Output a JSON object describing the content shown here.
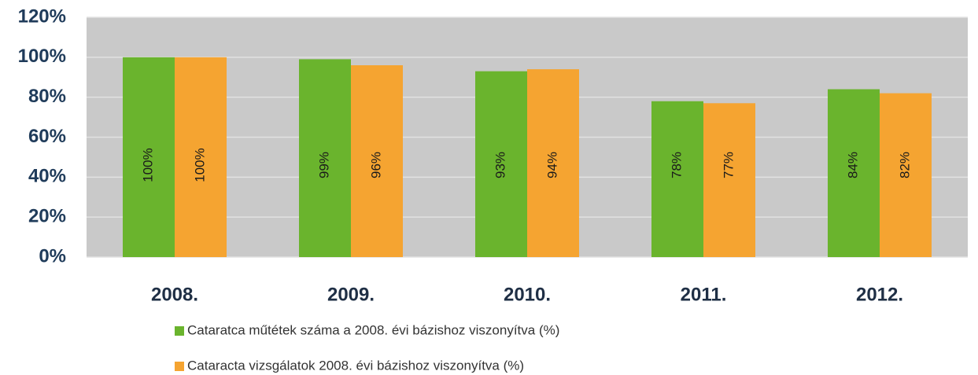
{
  "chart_data": {
    "type": "bar",
    "categories": [
      "2008.",
      "2009.",
      "2010.",
      "2011.",
      "2012."
    ],
    "series": [
      {
        "name": "Cataratca műtétek száma a 2008. évi bázishoz viszonyítva (%)",
        "color": "#6ab42d",
        "values": [
          100,
          99,
          93,
          78,
          84
        ],
        "value_labels": [
          "100%",
          "99%",
          "93%",
          "78%",
          "84%"
        ]
      },
      {
        "name": "Cataracta vizsgálatok 2008. évi bázishoz viszonyítva (%)",
        "color": "#f5a431",
        "values": [
          100,
          96,
          94,
          77,
          82
        ],
        "value_labels": [
          "100%",
          "96%",
          "94%",
          "77%",
          "82%"
        ]
      }
    ],
    "ylim": [
      0,
      120
    ],
    "yticks": [
      {
        "value": 0,
        "label": "0%"
      },
      {
        "value": 20,
        "label": "20%"
      },
      {
        "value": 40,
        "label": "40%"
      },
      {
        "value": 60,
        "label": "60%"
      },
      {
        "value": 80,
        "label": "80%"
      },
      {
        "value": 100,
        "label": "100%"
      },
      {
        "value": 120,
        "label": "120%"
      }
    ],
    "grid": true,
    "legend": "bottom"
  }
}
